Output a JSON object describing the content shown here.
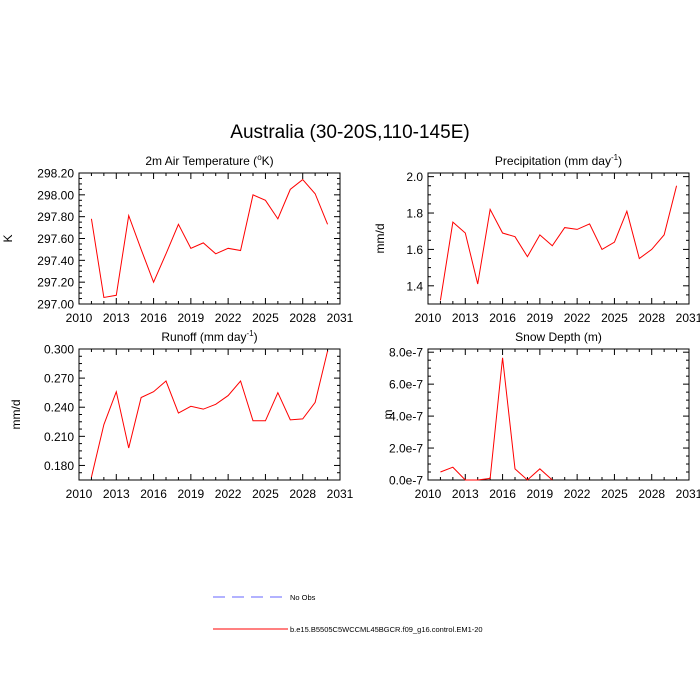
{
  "page": {
    "title": "Australia (30-20S,110-145E)"
  },
  "legend": {
    "items": [
      {
        "label": "No Obs",
        "color": "#6666ff",
        "style": "dashed"
      },
      {
        "label": "b.e15.B5505C5WCCML45BGCR.f09_g16.control.EM1-20",
        "color": "#ff0000",
        "style": "solid"
      }
    ]
  },
  "chart_data": [
    {
      "type": "line",
      "title_main": "2m Air Temperature (",
      "title_sup": "o",
      "title_tail": "K)",
      "ylabel": "K",
      "xlim": [
        2010,
        2031
      ],
      "ylim": [
        297.0,
        298.2
      ],
      "xticks": [
        2010,
        2013,
        2016,
        2019,
        2022,
        2025,
        2028,
        2031
      ],
      "yticks": [
        297.0,
        297.2,
        297.4,
        297.6,
        297.8,
        298.0,
        298.2
      ],
      "ytick_labels": [
        "297.00",
        "297.20",
        "297.40",
        "297.60",
        "297.80",
        "298.00",
        "298.20"
      ],
      "series": [
        {
          "color": "#ff0000",
          "x": [
            2011,
            2012,
            2013,
            2014,
            2015,
            2016,
            2017,
            2018,
            2019,
            2020,
            2021,
            2022,
            2023,
            2024,
            2025,
            2026,
            2027,
            2028,
            2029,
            2030
          ],
          "y": [
            297.78,
            297.06,
            297.08,
            297.81,
            297.5,
            297.2,
            297.46,
            297.73,
            297.51,
            297.56,
            297.46,
            297.51,
            297.49,
            298.0,
            297.95,
            297.78,
            298.05,
            298.14,
            298.01,
            297.73
          ]
        }
      ]
    },
    {
      "type": "line",
      "title_main": "Precipitation (mm day",
      "title_sup": "-1",
      "title_tail": ")",
      "ylabel": "mm/d",
      "xlim": [
        2010,
        2031
      ],
      "ylim": [
        1.3,
        2.02
      ],
      "xticks": [
        2010,
        2013,
        2016,
        2019,
        2022,
        2025,
        2028,
        2031
      ],
      "yticks": [
        1.4,
        1.6,
        1.8,
        2.0
      ],
      "ytick_labels": [
        "1.4",
        "1.6",
        "1.8",
        "2.0"
      ],
      "series": [
        {
          "color": "#ff0000",
          "x": [
            2011,
            2012,
            2013,
            2014,
            2015,
            2016,
            2017,
            2018,
            2019,
            2020,
            2021,
            2022,
            2023,
            2024,
            2025,
            2026,
            2027,
            2028,
            2029,
            2030
          ],
          "y": [
            1.32,
            1.75,
            1.69,
            1.41,
            1.82,
            1.69,
            1.67,
            1.56,
            1.68,
            1.62,
            1.72,
            1.71,
            1.74,
            1.6,
            1.64,
            1.81,
            1.55,
            1.6,
            1.68,
            1.95
          ]
        }
      ]
    },
    {
      "type": "line",
      "title_main": "Runoff (mm day",
      "title_sup": "-1",
      "title_tail": ")",
      "ylabel": "mm/d",
      "xlim": [
        2010,
        2031
      ],
      "ylim": [
        0.165,
        0.3
      ],
      "xticks": [
        2010,
        2013,
        2016,
        2019,
        2022,
        2025,
        2028,
        2031
      ],
      "yticks": [
        0.18,
        0.21,
        0.24,
        0.27,
        0.3
      ],
      "ytick_labels": [
        "0.180",
        "0.210",
        "0.240",
        "0.270",
        "0.300"
      ],
      "series": [
        {
          "color": "#ff0000",
          "x": [
            2011,
            2012,
            2013,
            2014,
            2015,
            2016,
            2017,
            2018,
            2019,
            2020,
            2021,
            2022,
            2023,
            2024,
            2025,
            2026,
            2027,
            2028,
            2029,
            2030
          ],
          "y": [
            0.168,
            0.222,
            0.256,
            0.198,
            0.25,
            0.256,
            0.267,
            0.234,
            0.241,
            0.238,
            0.243,
            0.252,
            0.267,
            0.226,
            0.226,
            0.255,
            0.227,
            0.228,
            0.245,
            0.298
          ]
        }
      ]
    },
    {
      "type": "line",
      "title_main": "Snow Depth (m)",
      "title_sup": "",
      "title_tail": "",
      "ylabel": "m",
      "xlim": [
        2010,
        2031
      ],
      "ylim": [
        0,
        8.2e-07
      ],
      "xticks": [
        2010,
        2013,
        2016,
        2019,
        2022,
        2025,
        2028,
        2031
      ],
      "yticks": [
        0,
        2e-07,
        4e-07,
        6e-07,
        8e-07
      ],
      "ytick_labels": [
        "0.0e-7",
        "2.0e-7",
        "4.0e-7",
        "6.0e-7",
        "8.0e-7"
      ],
      "series": [
        {
          "color": "#ff0000",
          "x": [
            2011,
            2012,
            2013,
            2014,
            2015,
            2016,
            2017,
            2018,
            2019,
            2020
          ],
          "y": [
            5e-08,
            8e-08,
            0,
            0,
            1e-08,
            7.65e-07,
            7e-08,
            0,
            7e-08,
            0
          ]
        }
      ]
    }
  ]
}
